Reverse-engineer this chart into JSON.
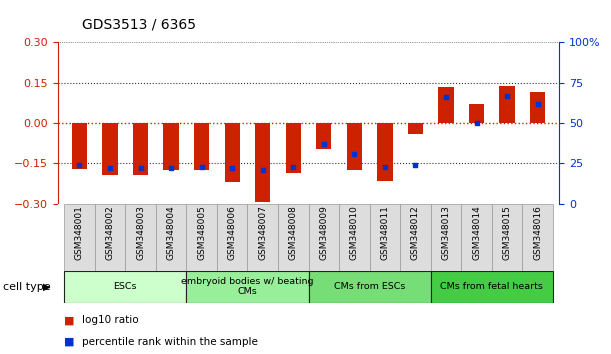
{
  "title": "GDS3513 / 6365",
  "samples": [
    "GSM348001",
    "GSM348002",
    "GSM348003",
    "GSM348004",
    "GSM348005",
    "GSM348006",
    "GSM348007",
    "GSM348008",
    "GSM348009",
    "GSM348010",
    "GSM348011",
    "GSM348012",
    "GSM348013",
    "GSM348014",
    "GSM348015",
    "GSM348016"
  ],
  "log10_ratio": [
    -0.17,
    -0.195,
    -0.195,
    -0.175,
    -0.175,
    -0.22,
    -0.295,
    -0.185,
    -0.095,
    -0.175,
    -0.215,
    -0.04,
    0.135,
    0.07,
    0.137,
    0.115
  ],
  "percentile_rank": [
    24,
    22,
    22,
    22,
    23,
    22,
    21,
    23,
    37,
    31,
    23,
    24,
    66,
    50,
    67,
    62
  ],
  "bar_color": "#cc2200",
  "dot_color": "#0033cc",
  "bg_color": "#ffffff",
  "ylim_left": [
    -0.3,
    0.3
  ],
  "ylim_right": [
    0,
    100
  ],
  "yticks_left": [
    -0.3,
    -0.15,
    0,
    0.15,
    0.3
  ],
  "yticks_right": [
    0,
    25,
    50,
    75,
    100
  ],
  "cell_types": [
    {
      "label": "ESCs",
      "start": 0,
      "end": 4,
      "color": "#ccffcc"
    },
    {
      "label": "embryoid bodies w/ beating\nCMs",
      "start": 4,
      "end": 8,
      "color": "#99ee99"
    },
    {
      "label": "CMs from ESCs",
      "start": 8,
      "end": 12,
      "color": "#77dd77"
    },
    {
      "label": "CMs from fetal hearts",
      "start": 12,
      "end": 16,
      "color": "#44cc44"
    }
  ],
  "cell_type_label": "cell type",
  "legend_items": [
    {
      "color": "#cc2200",
      "label": "log10 ratio"
    },
    {
      "color": "#0033cc",
      "label": "percentile rank within the sample"
    }
  ],
  "bar_width": 0.5,
  "right_axis_color": "#0033cc",
  "left_axis_color": "#cc2200",
  "title_fontsize": 10,
  "tick_fontsize": 8,
  "sample_fontsize": 6.5,
  "box_color": "#dddddd",
  "box_edge_color": "#999999"
}
